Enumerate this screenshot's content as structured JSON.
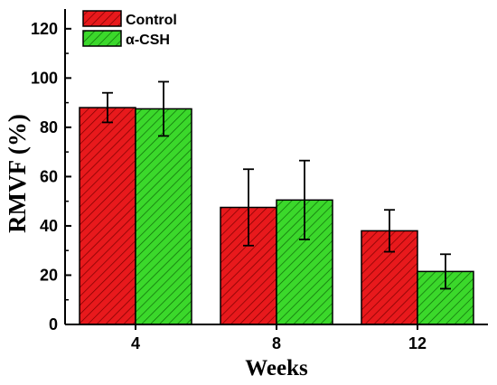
{
  "chart_data": {
    "type": "bar",
    "categories": [
      "4",
      "8",
      "12"
    ],
    "series": [
      {
        "name": "Control",
        "values": [
          88,
          47.5,
          38
        ],
        "errors": [
          6,
          15.5,
          8.5
        ],
        "color": "#e8191c",
        "hatch": "#7a0000"
      },
      {
        "name": "α-CSH",
        "values": [
          87.5,
          50.5,
          21.5
        ],
        "errors": [
          11,
          16,
          7
        ],
        "color": "#3bd82b",
        "hatch": "#0d6b08"
      }
    ],
    "xlabel": "Weeks",
    "ylabel": "RMVF (%)",
    "ylim": [
      0,
      128
    ],
    "yticks": [
      0,
      20,
      40,
      60,
      80,
      100,
      120
    ],
    "legend_position": "top-left",
    "grid": false
  }
}
